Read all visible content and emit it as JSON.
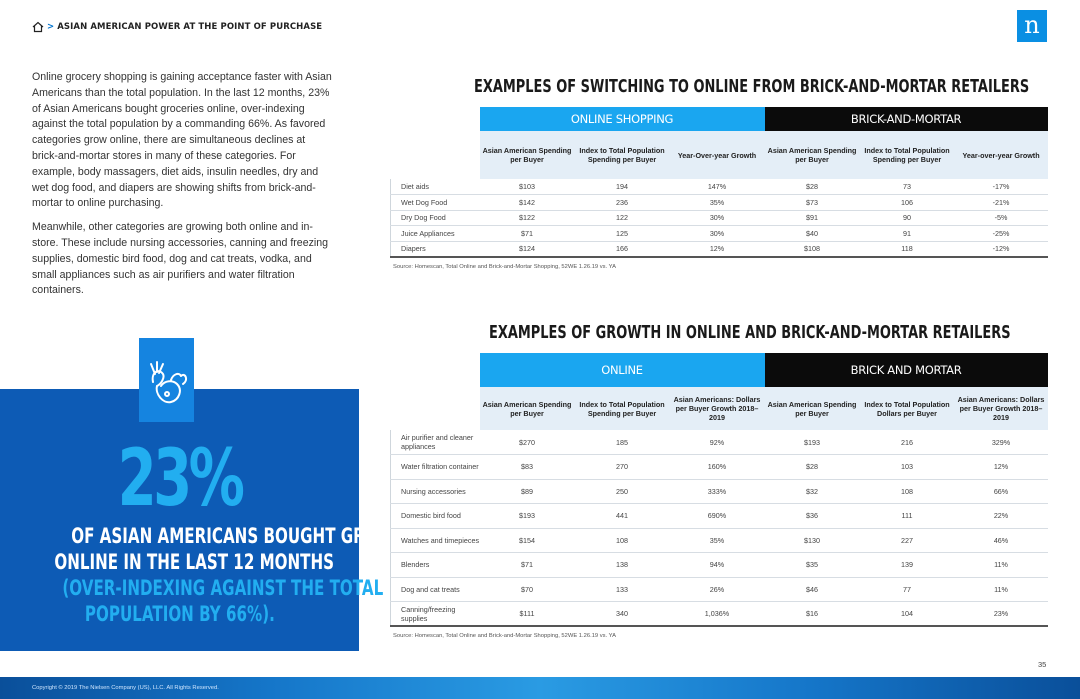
{
  "header": {
    "breadcrumb_sep": ">",
    "breadcrumb_title": "ASIAN AMERICAN POWER AT THE POINT OF PURCHASE",
    "logo_letter": "n"
  },
  "intro": {
    "p1": "Online grocery shopping is gaining acceptance faster with Asian Americans than the total population. In the last 12 months, 23% of Asian Americans bought groceries online, over-indexing against the total population by a commanding 66%. As favored categories grow online, there are simultaneous declines at brick-and-mortar stores in many of these categories. For example, body massagers, diet aids, insulin needles, dry and wet dog food, and diapers are showing shifts from brick-and-mortar to online purchasing.",
    "p2": "Meanwhile, other categories are growing both online and in-store. These include nursing accessories, canning and freezing supplies, domestic bird food, dog and cat treats, vodka, and small appliances such as air purifiers and water filtration containers."
  },
  "callout": {
    "icon": "grocery-produce-icon",
    "big_number": "23%",
    "line1": "OF ASIAN AMERICANS BOUGHT GROCERIES",
    "line2": "ONLINE IN THE LAST 12 MONTHS",
    "line3": "(OVER-INDEXING AGAINST THE TOTAL",
    "line4": "POPULATION BY 66%)."
  },
  "table1": {
    "title": "EXAMPLES OF SWITCHING TO ONLINE FROM BRICK-AND-MORTAR RETAILERS",
    "band_left": "ONLINE SHOPPING",
    "band_right": "BRICK-AND-MORTAR",
    "headers": [
      "Asian American Spending per Buyer",
      "Index to Total Population Spending per Buyer",
      "Year-Over-year Growth",
      "Asian American Spending per Buyer",
      "Index to Total Population Spending per Buyer",
      "Year-over-year Growth"
    ],
    "rows": [
      {
        "label": "Diet aids",
        "cells": [
          "$103",
          "194",
          "147%",
          "$28",
          "73",
          "-17%"
        ]
      },
      {
        "label": "Wet Dog Food",
        "cells": [
          "$142",
          "236",
          "35%",
          "$73",
          "106",
          "-21%"
        ]
      },
      {
        "label": "Dry Dog Food",
        "cells": [
          "$122",
          "122",
          "30%",
          "$91",
          "90",
          "-5%"
        ]
      },
      {
        "label": "Juice Appliances",
        "cells": [
          "$71",
          "125",
          "30%",
          "$40",
          "91",
          "-25%"
        ]
      },
      {
        "label": "Diapers",
        "cells": [
          "$124",
          "166",
          "12%",
          "$108",
          "118",
          "-12%"
        ]
      }
    ],
    "source": "Source: Homescan, Total Online and Brick-and-Mortar Shopping, 52WE 1.26.19 vs. YA"
  },
  "table2": {
    "title": "EXAMPLES OF GROWTH IN ONLINE AND BRICK-AND-MORTAR RETAILERS",
    "band_left": "ONLINE",
    "band_right": "BRICK AND MORTAR",
    "headers": [
      "Asian American Spending per Buyer",
      "Index to Total Population Spending per Buyer",
      "Asian Americans: Dollars per Buyer Growth 2018–2019",
      "Asian American Spending per Buyer",
      "Index to Total Population Dollars per Buyer",
      "Asian Americans: Dollars per Buyer Growth 2018–2019"
    ],
    "rows": [
      {
        "label": "Air purifier and cleaner appliances",
        "cells": [
          "$270",
          "185",
          "92%",
          "$193",
          "216",
          "329%"
        ]
      },
      {
        "label": "Water filtration container",
        "cells": [
          "$83",
          "270",
          "160%",
          "$28",
          "103",
          "12%"
        ]
      },
      {
        "label": "Nursing accessories",
        "cells": [
          "$89",
          "250",
          "333%",
          "$32",
          "108",
          "66%"
        ]
      },
      {
        "label": "Domestic bird food",
        "cells": [
          "$193",
          "441",
          "690%",
          "$36",
          "111",
          "22%"
        ]
      },
      {
        "label": "Watches and timepieces",
        "cells": [
          "$154",
          "108",
          "35%",
          "$130",
          "227",
          "46%"
        ]
      },
      {
        "label": "Blenders",
        "cells": [
          "$71",
          "138",
          "94%",
          "$35",
          "139",
          "11%"
        ]
      },
      {
        "label": "Dog and cat treats",
        "cells": [
          "$70",
          "133",
          "26%",
          "$46",
          "77",
          "11%"
        ]
      },
      {
        "label": "Canning/freezing supplies",
        "cells": [
          "$111",
          "340",
          "1,036%",
          "$16",
          "104",
          "23%"
        ]
      }
    ],
    "source": "Source: Homescan, Total Online and Brick-and-Mortar Shopping, 52WE 1.26.19 vs. YA"
  },
  "footer": {
    "page_number": "35",
    "copyright": "Copyright © 2019 The Nielsen Company (US), LLC. All Rights Reserved."
  },
  "colors": {
    "accent_light_blue": "#1aa6f0",
    "callout_blue": "#0d5bb5",
    "band_dark": "#0b0b0b",
    "logo_blue": "#0a8fe3"
  }
}
